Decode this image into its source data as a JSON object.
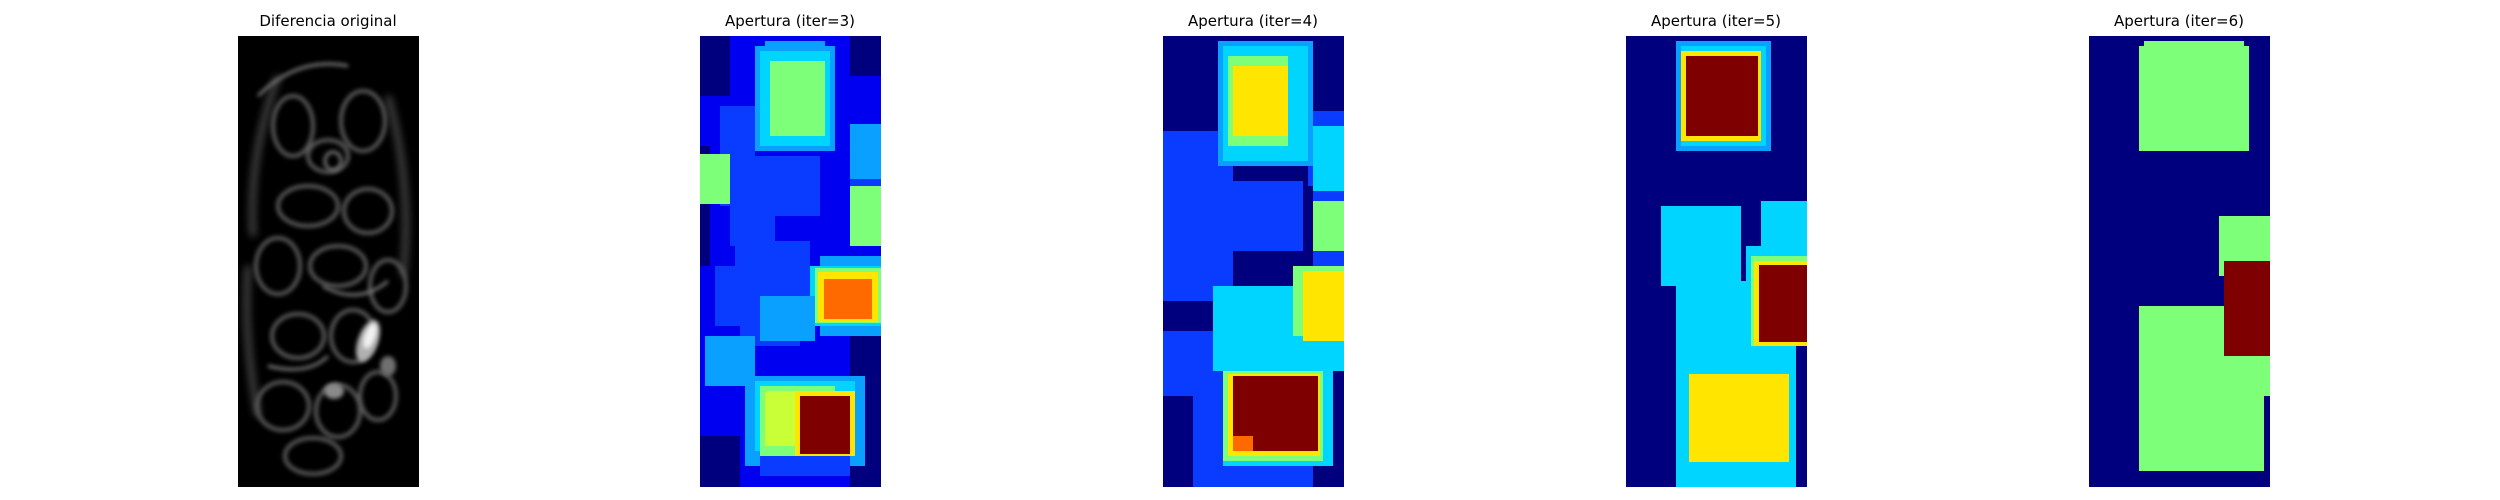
{
  "panels": [
    {
      "title": "Diferencia original",
      "colormap": "gray"
    },
    {
      "title": "Apertura (iter=3)",
      "colormap": "jet"
    },
    {
      "title": "Apertura (iter=4)",
      "colormap": "jet"
    },
    {
      "title": "Apertura (iter=5)",
      "colormap": "jet"
    },
    {
      "title": "Apertura (iter=6)",
      "colormap": "jet"
    }
  ],
  "colors": {
    "jet_darkblue": "#00007f",
    "jet_blue": "#0000f0",
    "jet_mediumblue": "#0a3cff",
    "jet_azure": "#0aa0ff",
    "jet_cyan": "#00d5ff",
    "jet_green": "#7dff7a",
    "jet_yellowgreen": "#c8ff37",
    "jet_yellow": "#ffe500",
    "jet_orange": "#ff6a00",
    "jet_darkred": "#7f0000",
    "gray_black": "#000000",
    "gray_light": "#e8e8e8"
  }
}
